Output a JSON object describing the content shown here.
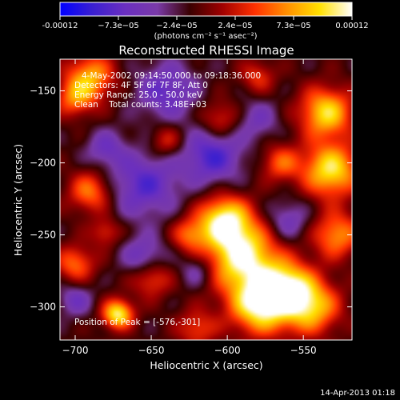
{
  "chart_data": {
    "type": "heatmap",
    "title": "Reconstructed RHESSI Image",
    "xlabel": "Heliocentric X (arcsec)",
    "ylabel": "Heliocentric Y (arcsec)",
    "xlim": [
      -710,
      -518
    ],
    "ylim": [
      -323,
      -128
    ],
    "xticks": [
      -700,
      -650,
      -600,
      -550
    ],
    "yticks": [
      -150,
      -200,
      -250,
      -300
    ],
    "colorbar": {
      "min": -0.00012,
      "max": 0.00012,
      "tick_labels": [
        "-0.00012",
        "−7.3e−05",
        "−2.4e−05",
        "2.4e−05",
        "7.3e−05",
        "0.00012"
      ],
      "unit_label": "(photons cm⁻² s⁻¹ asec⁻²)"
    },
    "annotations": [
      "4-May-2002 09:14:50.000 to 09:18:36.000",
      "Detectors: 4F 5F 6F 7F 8F, Att 0",
      "Energy Range: 25.0 - 50.0 keV",
      "Clean    Total counts: 3.48E+03"
    ],
    "peak_label": "Position of Peak = [-576,-301]",
    "footer_timestamp": "14-Apr-2013 01:18",
    "colormap_stops": [
      "#0000ff",
      "#3a1fd0",
      "#6a2fc0",
      "#7a3aa8",
      "#3a0000",
      "#a00000",
      "#ff3000",
      "#ff9000",
      "#ffe000",
      "#ffffff"
    ],
    "sources": [
      {
        "x": -578,
        "y": -298,
        "amp": 1.0,
        "sigma": 14
      },
      {
        "x": -590,
        "y": -265,
        "amp": 0.95,
        "sigma": 16
      },
      {
        "x": -602,
        "y": -240,
        "amp": 0.9,
        "sigma": 12
      },
      {
        "x": -560,
        "y": -285,
        "amp": 0.7,
        "sigma": 12
      },
      {
        "x": -532,
        "y": -205,
        "amp": 0.85,
        "sigma": 13
      },
      {
        "x": -535,
        "y": -165,
        "amp": 0.8,
        "sigma": 12
      },
      {
        "x": -545,
        "y": -300,
        "amp": 0.75,
        "sigma": 13
      },
      {
        "x": -528,
        "y": -250,
        "amp": 0.6,
        "sigma": 11
      },
      {
        "x": -690,
        "y": -140,
        "amp": 0.65,
        "sigma": 11
      },
      {
        "x": -700,
        "y": -155,
        "amp": 0.5,
        "sigma": 9
      },
      {
        "x": -672,
        "y": -305,
        "amp": 0.9,
        "sigma": 7
      },
      {
        "x": -690,
        "y": -220,
        "amp": 0.55,
        "sigma": 10
      },
      {
        "x": -700,
        "y": -270,
        "amp": 0.5,
        "sigma": 9
      },
      {
        "x": -650,
        "y": -280,
        "amp": 0.45,
        "sigma": 9
      },
      {
        "x": -625,
        "y": -250,
        "amp": 0.45,
        "sigma": 8
      },
      {
        "x": -640,
        "y": -185,
        "amp": 0.35,
        "sigma": 8
      },
      {
        "x": -605,
        "y": -170,
        "amp": 0.4,
        "sigma": 9
      },
      {
        "x": -580,
        "y": -140,
        "amp": 0.35,
        "sigma": 8
      },
      {
        "x": -565,
        "y": -200,
        "amp": 0.45,
        "sigma": 9
      },
      {
        "x": -620,
        "y": -315,
        "amp": 0.4,
        "sigma": 9
      },
      {
        "x": -680,
        "y": -248,
        "amp": 0.35,
        "sigma": 7
      },
      {
        "x": -640,
        "y": -150,
        "amp": -0.45,
        "sigma": 14
      },
      {
        "x": -610,
        "y": -195,
        "amp": -0.55,
        "sigma": 14
      },
      {
        "x": -655,
        "y": -215,
        "amp": -0.5,
        "sigma": 16
      },
      {
        "x": -680,
        "y": -190,
        "amp": -0.35,
        "sigma": 9
      },
      {
        "x": -655,
        "y": -265,
        "amp": -0.4,
        "sigma": 10
      },
      {
        "x": -700,
        "y": -295,
        "amp": -0.35,
        "sigma": 8
      },
      {
        "x": -560,
        "y": -240,
        "amp": -0.35,
        "sigma": 10
      },
      {
        "x": -580,
        "y": -170,
        "amp": -0.3,
        "sigma": 10
      },
      {
        "x": -620,
        "y": -275,
        "amp": -0.3,
        "sigma": 8
      }
    ]
  }
}
